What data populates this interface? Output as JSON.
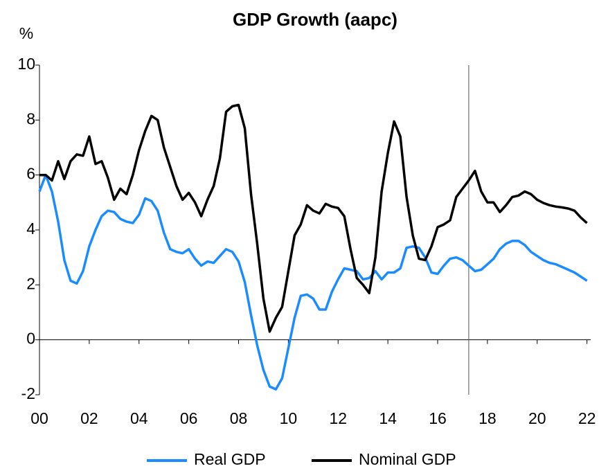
{
  "chart_data": {
    "type": "line",
    "title": "GDP Growth (aapc)",
    "y_label": "%",
    "x": [
      2000,
      2000.25,
      2000.5,
      2000.75,
      2001,
      2001.25,
      2001.5,
      2001.75,
      2002,
      2002.25,
      2002.5,
      2002.75,
      2003,
      2003.25,
      2003.5,
      2003.75,
      2004,
      2004.25,
      2004.5,
      2004.75,
      2005,
      2005.25,
      2005.5,
      2005.75,
      2006,
      2006.25,
      2006.5,
      2006.75,
      2007,
      2007.25,
      2007.5,
      2007.75,
      2008,
      2008.25,
      2008.5,
      2008.75,
      2009,
      2009.25,
      2009.5,
      2009.75,
      2010,
      2010.25,
      2010.5,
      2010.75,
      2011,
      2011.25,
      2011.5,
      2011.75,
      2012,
      2012.25,
      2012.5,
      2012.75,
      2013,
      2013.25,
      2013.5,
      2013.75,
      2014,
      2014.25,
      2014.5,
      2014.75,
      2015,
      2015.25,
      2015.5,
      2015.75,
      2016,
      2016.25,
      2016.5,
      2016.75,
      2017,
      2017.25,
      2017.5,
      2017.75,
      2018,
      2018.25,
      2018.5,
      2018.75,
      2019,
      2019.25,
      2019.5,
      2019.75,
      2020,
      2020.25,
      2020.5,
      2020.75,
      2021,
      2021.25,
      2021.5,
      2021.75,
      2022
    ],
    "series": [
      {
        "name": "Real GDP",
        "color": "#1a8cff",
        "values": [
          5.4,
          6.0,
          5.4,
          4.3,
          2.9,
          2.15,
          2.05,
          2.5,
          3.4,
          4.0,
          4.5,
          4.7,
          4.65,
          4.4,
          4.3,
          4.25,
          4.55,
          5.15,
          5.05,
          4.7,
          3.9,
          3.3,
          3.2,
          3.15,
          3.3,
          2.95,
          2.7,
          2.85,
          2.8,
          3.05,
          3.3,
          3.2,
          2.85,
          2.1,
          0.9,
          -0.2,
          -1.1,
          -1.7,
          -1.8,
          -1.4,
          -0.3,
          0.8,
          1.6,
          1.65,
          1.5,
          1.1,
          1.1,
          1.75,
          2.2,
          2.6,
          2.55,
          2.5,
          2.2,
          2.25,
          2.5,
          2.2,
          2.45,
          2.45,
          2.6,
          3.35,
          3.4,
          3.35,
          3.0,
          2.45,
          2.4,
          2.7,
          2.95,
          3.0,
          2.9,
          2.7,
          2.5,
          2.55,
          2.75,
          2.95,
          3.3,
          3.5,
          3.6,
          3.6,
          3.45,
          3.2,
          3.05,
          2.9,
          2.8,
          2.75,
          2.65,
          2.55,
          2.45,
          2.3,
          2.15
        ]
      },
      {
        "name": "Nominal GDP",
        "color": "#000000",
        "values": [
          6.0,
          6.0,
          5.8,
          6.5,
          5.85,
          6.5,
          6.75,
          6.7,
          7.4,
          6.4,
          6.5,
          5.9,
          5.1,
          5.5,
          5.3,
          6.0,
          6.9,
          7.6,
          8.15,
          8.0,
          7.0,
          6.3,
          5.6,
          5.1,
          5.35,
          5.0,
          4.5,
          5.1,
          5.6,
          6.6,
          8.3,
          8.5,
          8.55,
          7.7,
          5.3,
          3.5,
          1.5,
          0.3,
          0.8,
          1.2,
          2.5,
          3.8,
          4.2,
          4.9,
          4.7,
          4.6,
          4.95,
          4.85,
          4.8,
          4.5,
          3.3,
          2.25,
          2.0,
          1.7,
          3.0,
          5.4,
          6.8,
          7.95,
          7.4,
          5.2,
          3.8,
          2.95,
          2.9,
          3.4,
          4.1,
          4.2,
          4.35,
          5.2,
          5.5,
          5.8,
          6.15,
          5.4,
          5.0,
          5.0,
          4.65,
          4.9,
          5.2,
          5.25,
          5.4,
          5.3,
          5.1,
          4.98,
          4.9,
          4.85,
          4.82,
          4.78,
          4.7,
          4.45,
          4.25
        ]
      }
    ],
    "vline": 2017.25,
    "xlim": [
      2000,
      2022.15
    ],
    "xticks": [
      {
        "value": 2000,
        "label": "00"
      },
      {
        "value": 2002,
        "label": "02"
      },
      {
        "value": 2004,
        "label": "04"
      },
      {
        "value": 2006,
        "label": "06"
      },
      {
        "value": 2008,
        "label": "08"
      },
      {
        "value": 2010,
        "label": "10"
      },
      {
        "value": 2012,
        "label": "12"
      },
      {
        "value": 2014,
        "label": "14"
      },
      {
        "value": 2016,
        "label": "16"
      },
      {
        "value": 2018,
        "label": "18"
      },
      {
        "value": 2020,
        "label": "20"
      },
      {
        "value": 2022,
        "label": "22"
      }
    ],
    "ylim": [
      -2,
      10
    ],
    "yticks": [
      -2,
      0,
      2,
      4,
      6,
      8,
      10
    ],
    "grid": false,
    "legend": "bottom"
  }
}
